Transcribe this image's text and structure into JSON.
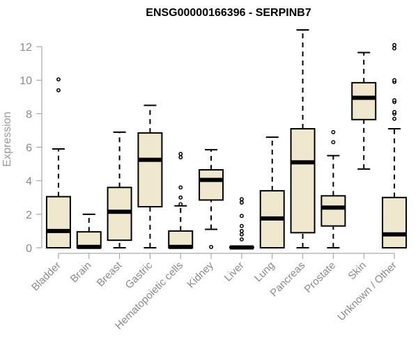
{
  "chart_data": {
    "type": "box",
    "title": "ENSG00000166396 - SERPINB7",
    "xlabel": "",
    "ylabel": "Expression",
    "ylim": [
      0,
      13
    ],
    "yticks": [
      0,
      2,
      4,
      6,
      8,
      10,
      12
    ],
    "grid": false,
    "colors": {
      "box_fill": "#efe8cf",
      "box_stroke": "#000000",
      "axis": "#9a9a9a"
    },
    "categories": [
      "Bladder",
      "Brain",
      "Breast",
      "Gastric",
      "Hematopoietic cells",
      "Kidney",
      "Liver",
      "Lung",
      "Pancreas",
      "Prostate",
      "Skin",
      "Unknown / Other"
    ],
    "boxes": [
      {
        "category": "Bladder",
        "min": 0,
        "q1": 0,
        "median": 1.0,
        "q3": 3.05,
        "max": 5.9,
        "outliers": [
          9.4,
          10.05
        ]
      },
      {
        "category": "Brain",
        "min": 0,
        "q1": 0,
        "median": 0.05,
        "q3": 0.95,
        "max": 2.0,
        "outliers": []
      },
      {
        "category": "Breast",
        "min": 0,
        "q1": 0.45,
        "median": 2.15,
        "q3": 3.6,
        "max": 6.9,
        "outliers": []
      },
      {
        "category": "Gastric",
        "min": 0,
        "q1": 2.45,
        "median": 5.25,
        "q3": 6.85,
        "max": 8.5,
        "outliers": []
      },
      {
        "category": "Hematopoietic cells",
        "min": 0,
        "q1": 0,
        "median": 0.05,
        "q3": 1.0,
        "max": 2.5,
        "outliers": [
          2.6,
          3.0,
          3.6,
          5.4,
          5.6
        ]
      },
      {
        "category": "Kidney",
        "min": 1.1,
        "q1": 2.85,
        "median": 4.05,
        "q3": 4.65,
        "max": 5.85,
        "outliers": [
          0.05
        ]
      },
      {
        "category": "Liver",
        "min": 0,
        "q1": 0,
        "median": 0.02,
        "q3": 0.05,
        "max": 0.1,
        "outliers": [
          0.5,
          0.8,
          1.0,
          1.3,
          1.9,
          2.7,
          2.9
        ]
      },
      {
        "category": "Lung",
        "min": 0,
        "q1": 0,
        "median": 1.75,
        "q3": 3.4,
        "max": 6.6,
        "outliers": []
      },
      {
        "category": "Pancreas",
        "min": 0,
        "q1": 0.9,
        "median": 5.1,
        "q3": 7.1,
        "max": 13.0,
        "outliers": []
      },
      {
        "category": "Prostate",
        "min": 0,
        "q1": 1.3,
        "median": 2.4,
        "q3": 3.1,
        "max": 5.5,
        "outliers": [
          6.3,
          6.9
        ]
      },
      {
        "category": "Skin",
        "min": 4.7,
        "q1": 7.65,
        "median": 8.95,
        "q3": 9.85,
        "max": 11.65,
        "outliers": []
      },
      {
        "category": "Unknown / Other",
        "min": 0,
        "q1": 0,
        "median": 0.8,
        "q3": 3.0,
        "max": 7.1,
        "outliers": [
          7.7,
          8.0,
          8.1,
          8.7,
          8.8,
          9.9,
          10.0,
          11.9,
          12.1
        ]
      }
    ]
  }
}
